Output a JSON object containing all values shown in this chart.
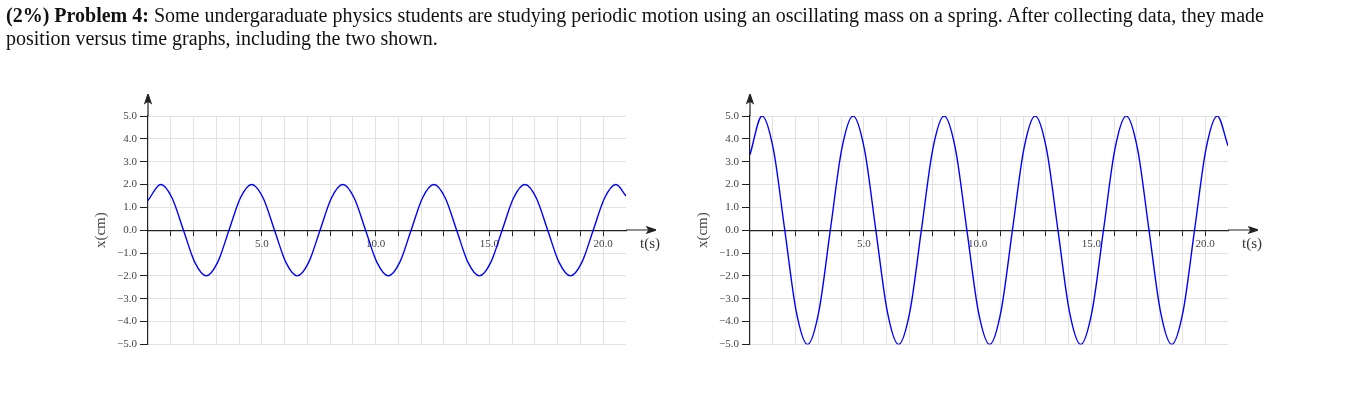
{
  "chart_data": [
    {
      "type": "line",
      "title": "(2%) Problem 4:",
      "subtitle": "Some undergaraduate physics students are studying periodic motion using an oscillating mass on a spring. After collecting data, they made position versus time graphs, including the two shown.",
      "xlabel": "t(s)",
      "ylabel": "x(cm)",
      "x": [
        0,
        0.56,
        1.06,
        1.56,
        2.06,
        2.56,
        3.06,
        3.56,
        4.06,
        4.56,
        5.06,
        5.56,
        6.06,
        6.56,
        7.06,
        7.56,
        8.06,
        8.56,
        9.06,
        9.56,
        10.06,
        10.56,
        11.06,
        11.56,
        12.06,
        12.56,
        13.06,
        13.56,
        14.06,
        14.56,
        15.06,
        15.56,
        16.06,
        16.56,
        17.06,
        17.56,
        18.06,
        18.56,
        19.06,
        19.56,
        20.06,
        20.56,
        21
      ],
      "series": [
        {
          "color": "#0000ff",
          "values": [
            1.3,
            2,
            1.41,
            0,
            -1.41,
            -2,
            -1.41,
            0,
            1.41,
            2,
            1.41,
            0,
            -1.41,
            -2,
            -1.41,
            0,
            1.41,
            2,
            1.41,
            0,
            -1.41,
            -2,
            -1.41,
            0,
            1.41,
            2,
            1.41,
            0,
            -1.41,
            -2,
            -1.41,
            0,
            1.41,
            2,
            1.41,
            0,
            -1.41,
            -2,
            -1.41,
            0,
            1.41,
            2,
            1.5
          ]
        }
      ],
      "xlim": [
        0,
        21
      ],
      "xticks": [
        {
          "value": 1,
          "label": null
        },
        {
          "value": 2,
          "label": null
        },
        {
          "value": 3,
          "label": null
        },
        {
          "value": 4,
          "label": null
        },
        {
          "value": 5,
          "label": "5.0"
        },
        {
          "value": 6,
          "label": null
        },
        {
          "value": 7,
          "label": null
        },
        {
          "value": 8,
          "label": null
        },
        {
          "value": 9,
          "label": null
        },
        {
          "value": 10,
          "label": "10.0"
        },
        {
          "value": 11,
          "label": null
        },
        {
          "value": 12,
          "label": null
        },
        {
          "value": 13,
          "label": null
        },
        {
          "value": 14,
          "label": null
        },
        {
          "value": 15,
          "label": "15.0"
        },
        {
          "value": 16,
          "label": null
        },
        {
          "value": 17,
          "label": null
        },
        {
          "value": 18,
          "label": null
        },
        {
          "value": 19,
          "label": null
        },
        {
          "value": 20,
          "label": "20.0"
        }
      ],
      "ylim": [
        -5,
        5
      ],
      "yticks": [
        {
          "value": -5,
          "label": "−5.0"
        },
        {
          "value": -4,
          "label": "−4.0"
        },
        {
          "value": -3,
          "label": "−3.0"
        },
        {
          "value": -2,
          "label": "−2.0"
        },
        {
          "value": -1,
          "label": "−1.0"
        },
        {
          "value": 0,
          "label": "0.0"
        },
        {
          "value": 1,
          "label": "1.0"
        },
        {
          "value": 2,
          "label": "2.0"
        },
        {
          "value": 3,
          "label": "3.0"
        },
        {
          "value": 4,
          "label": "4.0"
        },
        {
          "value": 5,
          "label": "5.0"
        }
      ],
      "grid": true,
      "marker": "none",
      "line_style": "solid"
    },
    {
      "type": "line",
      "xlabel": "t(s)",
      "ylabel": "x(cm)",
      "x": [
        0,
        0.53,
        1.03,
        1.53,
        2.03,
        2.53,
        3.03,
        3.53,
        4.03,
        4.53,
        5.03,
        5.53,
        6.03,
        6.53,
        7.03,
        7.53,
        8.03,
        8.53,
        9.03,
        9.53,
        10.03,
        10.53,
        11.03,
        11.53,
        12.03,
        12.53,
        13.03,
        13.53,
        14.03,
        14.53,
        15.03,
        15.53,
        16.03,
        16.53,
        17.03,
        17.53,
        18.03,
        18.53,
        19.03,
        19.53,
        20.03,
        20.53,
        21
      ],
      "series": [
        {
          "color": "#0000ff",
          "values": [
            3.3,
            5,
            3.54,
            0,
            -3.54,
            -5,
            -3.54,
            0,
            3.54,
            5,
            3.54,
            0,
            -3.54,
            -5,
            -3.54,
            0,
            3.54,
            5,
            3.54,
            0,
            -3.54,
            -5,
            -3.54,
            0,
            3.54,
            5,
            3.54,
            0,
            -3.54,
            -5,
            -3.54,
            0,
            3.54,
            5,
            3.54,
            0,
            -3.54,
            -5,
            -3.54,
            0,
            3.54,
            5,
            3.7
          ]
        }
      ],
      "xlim": [
        0,
        21
      ],
      "xticks": [
        {
          "value": 1,
          "label": null
        },
        {
          "value": 2,
          "label": null
        },
        {
          "value": 3,
          "label": null
        },
        {
          "value": 4,
          "label": null
        },
        {
          "value": 5,
          "label": "5.0"
        },
        {
          "value": 6,
          "label": null
        },
        {
          "value": 7,
          "label": null
        },
        {
          "value": 8,
          "label": null
        },
        {
          "value": 9,
          "label": null
        },
        {
          "value": 10,
          "label": "10.0"
        },
        {
          "value": 11,
          "label": null
        },
        {
          "value": 12,
          "label": null
        },
        {
          "value": 13,
          "label": null
        },
        {
          "value": 14,
          "label": null
        },
        {
          "value": 15,
          "label": "15.0"
        },
        {
          "value": 16,
          "label": null
        },
        {
          "value": 17,
          "label": null
        },
        {
          "value": 18,
          "label": null
        },
        {
          "value": 19,
          "label": null
        },
        {
          "value": 20,
          "label": "20.0"
        }
      ],
      "ylim": [
        -5,
        5
      ],
      "yticks": [
        {
          "value": -5,
          "label": "−5.0"
        },
        {
          "value": -4,
          "label": "−4.0"
        },
        {
          "value": -3,
          "label": "−3.0"
        },
        {
          "value": -2,
          "label": "−2.0"
        },
        {
          "value": -1,
          "label": "−1.0"
        },
        {
          "value": 0,
          "label": "0.0"
        },
        {
          "value": 1,
          "label": "1.0"
        },
        {
          "value": 2,
          "label": "2.0"
        },
        {
          "value": 3,
          "label": "3.0"
        },
        {
          "value": 4,
          "label": "4.0"
        },
        {
          "value": 5,
          "label": "5.0"
        }
      ],
      "grid": true,
      "marker": "none",
      "line_style": "solid"
    }
  ]
}
